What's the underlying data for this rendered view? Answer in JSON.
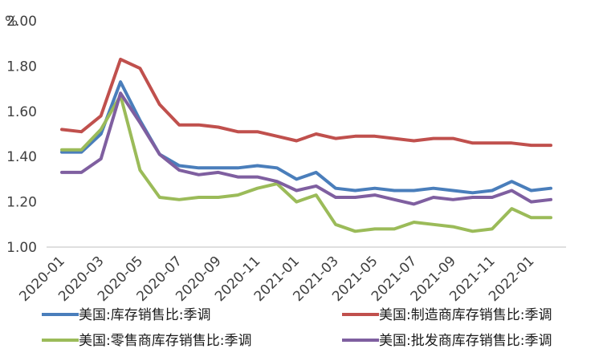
{
  "chart_data": {
    "type": "line",
    "unit_label": "%",
    "ylim": [
      1.0,
      2.0
    ],
    "y_ticks": [
      "1.00",
      "1.20",
      "1.40",
      "1.60",
      "1.80",
      "2.00"
    ],
    "grid": false,
    "legend_position": "bottom",
    "x": [
      "2020-01",
      "2020-02",
      "2020-03",
      "2020-04",
      "2020-05",
      "2020-06",
      "2020-07",
      "2020-08",
      "2020-09",
      "2020-10",
      "2020-11",
      "2020-12",
      "2021-01",
      "2021-02",
      "2021-03",
      "2021-04",
      "2021-05",
      "2021-06",
      "2021-07",
      "2021-08",
      "2021-09",
      "2021-10",
      "2021-11",
      "2021-12",
      "2022-01",
      "2022-02"
    ],
    "x_tick_labels": [
      "2020-01",
      "2020-03",
      "2020-05",
      "2020-07",
      "2020-09",
      "2020-11",
      "2021-01",
      "2021-03",
      "2021-05",
      "2021-07",
      "2021-09",
      "2021-11",
      "2022-01"
    ],
    "series": [
      {
        "name": "美国:库存销售比:季调",
        "color": "#4a7ebb",
        "values": [
          1.42,
          1.42,
          1.5,
          1.73,
          1.56,
          1.41,
          1.36,
          1.35,
          1.35,
          1.35,
          1.36,
          1.35,
          1.3,
          1.33,
          1.26,
          1.25,
          1.26,
          1.25,
          1.25,
          1.26,
          1.25,
          1.24,
          1.25,
          1.29,
          1.25,
          1.26
        ]
      },
      {
        "name": "美国:制造商库存销售比:季调",
        "color": "#c0504d",
        "values": [
          1.52,
          1.51,
          1.58,
          1.83,
          1.79,
          1.63,
          1.54,
          1.54,
          1.53,
          1.51,
          1.51,
          1.49,
          1.47,
          1.5,
          1.48,
          1.49,
          1.49,
          1.48,
          1.47,
          1.48,
          1.48,
          1.46,
          1.46,
          1.46,
          1.45,
          1.45
        ]
      },
      {
        "name": "美国:零售商库存销售比:季调",
        "color": "#9bbb59",
        "values": [
          1.43,
          1.43,
          1.52,
          1.67,
          1.34,
          1.22,
          1.21,
          1.22,
          1.22,
          1.23,
          1.26,
          1.28,
          1.2,
          1.23,
          1.1,
          1.07,
          1.08,
          1.08,
          1.11,
          1.1,
          1.09,
          1.07,
          1.08,
          1.17,
          1.13,
          1.13
        ]
      },
      {
        "name": "美国:批发商库存销售比:季调",
        "color": "#7f5fa0",
        "values": [
          1.33,
          1.33,
          1.39,
          1.68,
          1.55,
          1.41,
          1.34,
          1.32,
          1.33,
          1.31,
          1.31,
          1.29,
          1.25,
          1.27,
          1.22,
          1.22,
          1.23,
          1.21,
          1.19,
          1.22,
          1.21,
          1.22,
          1.22,
          1.25,
          1.2,
          1.21
        ]
      }
    ]
  }
}
